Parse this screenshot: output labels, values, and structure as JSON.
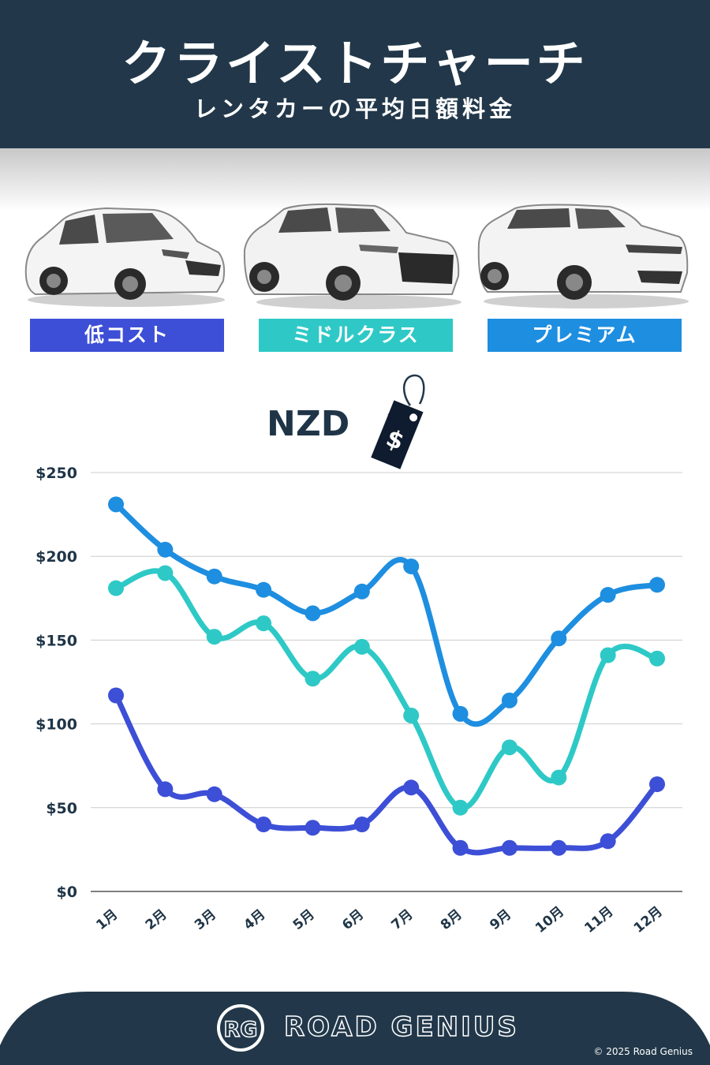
{
  "header": {
    "title": "クライストチャーチ",
    "subtitle": "レンタカーの平均日額料金"
  },
  "categories": {
    "economy": "低コスト",
    "midsize": "ミドルクラス",
    "premium": "プレミアム"
  },
  "currency": "NZD",
  "price_tag_symbol": "$",
  "colors": {
    "economy": "#3d4fd6",
    "midsize": "#2ec9c6",
    "premium": "#1e8ee0",
    "header_bg": "#22384a"
  },
  "chart_data": {
    "type": "line",
    "categories": [
      "1月",
      "2月",
      "3月",
      "4月",
      "5月",
      "6月",
      "7月",
      "8月",
      "9月",
      "10月",
      "11月",
      "12月"
    ],
    "series": [
      {
        "name": "プレミアム",
        "values": [
          231,
          204,
          188,
          180,
          166,
          179,
          194,
          106,
          114,
          151,
          177,
          183
        ]
      },
      {
        "name": "ミドルクラス",
        "values": [
          181,
          190,
          152,
          160,
          127,
          146,
          105,
          50,
          86,
          68,
          141,
          139
        ]
      },
      {
        "name": "低コスト",
        "values": [
          117,
          61,
          58,
          40,
          38,
          40,
          62,
          26,
          26,
          26,
          30,
          64
        ]
      }
    ],
    "ylim": [
      0,
      250
    ],
    "yticks": [
      0,
      50,
      100,
      150,
      200,
      250
    ],
    "ytick_labels": [
      "$0",
      "$50",
      "$100",
      "$150",
      "$200",
      "$250"
    ],
    "grid": true
  },
  "footer": {
    "logo_initials": "RG",
    "brand": "ROAD GENIUS",
    "copyright": "© 2025 Road Genius"
  }
}
